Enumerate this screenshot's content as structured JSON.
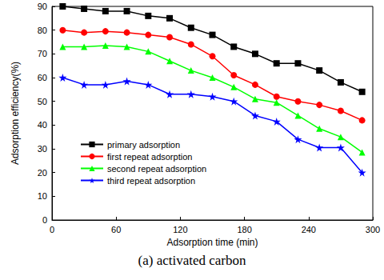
{
  "chart_data": {
    "type": "line",
    "title": "(a) activated carbon",
    "x_label": "Adsorption time (min)",
    "y_label": "Adsorption efficiency(%)",
    "x": [
      10,
      30,
      50,
      70,
      90,
      110,
      130,
      150,
      170,
      190,
      210,
      230,
      250,
      270,
      290
    ],
    "xlim": [
      0,
      300
    ],
    "xticks": [
      0,
      60,
      120,
      180,
      240,
      300
    ],
    "ylim": [
      0,
      90
    ],
    "yticks": [
      0,
      10,
      20,
      30,
      40,
      50,
      60,
      70,
      80,
      90
    ],
    "grid": false,
    "legend": "lower left",
    "series": [
      {
        "name": "primary adsorption",
        "color": "#000000",
        "marker": "square",
        "values": [
          90,
          89,
          88,
          88,
          86,
          85,
          81,
          78,
          73,
          70,
          66,
          66,
          63,
          58,
          54
        ]
      },
      {
        "name": "first repeat adsorption",
        "color": "#ff0000",
        "marker": "circle",
        "values": [
          80,
          79,
          79.5,
          79,
          78,
          77,
          74,
          69,
          61,
          57,
          52,
          50,
          48.5,
          46,
          42
        ]
      },
      {
        "name": "second repeat adsorption",
        "color": "#00ff00",
        "marker": "triangle",
        "values": [
          73,
          73,
          73.5,
          73,
          71,
          67,
          63,
          60,
          56,
          51,
          49.5,
          44,
          38.5,
          35,
          28.5
        ]
      },
      {
        "name": "third repeat adsorption",
        "color": "#0000ff",
        "marker": "star",
        "values": [
          60,
          57,
          57,
          58.5,
          57,
          53,
          53,
          52,
          50,
          44,
          41.5,
          34,
          30.5,
          30.5,
          20
        ]
      }
    ]
  }
}
